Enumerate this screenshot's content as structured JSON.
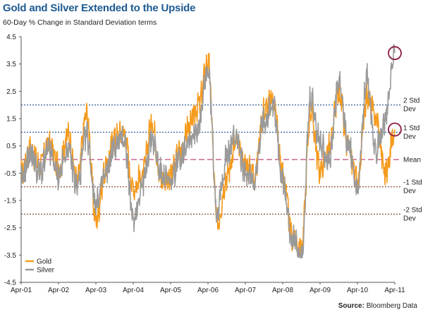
{
  "header": {
    "title": "Gold and Silver Extended to the Upside",
    "subtitle": "60-Day % Change in Standard Deviation terms"
  },
  "footer": {
    "source_label": "Source:",
    "source_value": "Bloomberg Data"
  },
  "colors": {
    "gold": "#f59a1d",
    "silver": "#9a9a9a",
    "std_line": "#1f4f8f",
    "neg_std_line": "#7a3d22",
    "mean_line": "#c0487a",
    "circle": "#8b1a3a"
  },
  "chart_data": {
    "type": "line",
    "title": "Gold and Silver Extended to the Upside",
    "subtitle": "60-Day % Change in Standard Deviation terms",
    "ylim": [
      -4.5,
      4.5
    ],
    "yticks": [
      "4.5",
      "3.5",
      "2.5",
      "1.5",
      "0.5",
      "-0.5",
      "-1.5",
      "-2.5",
      "-3.5",
      "-4.5"
    ],
    "xticks": [
      "Apr-01",
      "Apr-02",
      "Apr-03",
      "Apr-04",
      "Apr-05",
      "Apr-06",
      "Apr-07",
      "Apr-08",
      "Apr-09",
      "Apr-10",
      "Apr-11"
    ],
    "reference_lines": [
      {
        "value": 2,
        "label_line1": "2 Std",
        "label_line2": "Dev",
        "style": "pos"
      },
      {
        "value": 1,
        "label_line1": "1 Std",
        "label_line2": "Dev",
        "style": "pos"
      },
      {
        "value": 0,
        "label_line1": "Mean",
        "label_line2": "",
        "style": "mean"
      },
      {
        "value": -1,
        "label_line1": "-1 Std",
        "label_line2": "Dev",
        "style": "neg"
      },
      {
        "value": -2,
        "label_line1": "-2 Std",
        "label_line2": "Dev",
        "style": "neg"
      }
    ],
    "legend": {
      "position": "bottom-left"
    },
    "series": [
      {
        "name": "Gold",
        "color": "#f59a1d",
        "x": [
          2001.25,
          2001.5,
          2001.75,
          2002.0,
          2002.25,
          2002.5,
          2002.75,
          2003.0,
          2003.25,
          2003.5,
          2003.75,
          2004.0,
          2004.25,
          2004.5,
          2004.75,
          2005.0,
          2005.25,
          2005.5,
          2005.75,
          2006.0,
          2006.25,
          2006.5,
          2006.75,
          2007.0,
          2007.25,
          2007.5,
          2007.75,
          2008.0,
          2008.25,
          2008.5,
          2008.75,
          2009.0,
          2009.25,
          2009.5,
          2009.75,
          2010.0,
          2010.25,
          2010.5,
          2010.75,
          2011.0,
          2011.25
        ],
        "values": [
          -0.5,
          0.4,
          -0.2,
          0.6,
          -0.3,
          0.9,
          -0.8,
          1.7,
          -2.2,
          -0.4,
          0.8,
          1.0,
          -1.0,
          -0.6,
          1.4,
          -0.8,
          -0.6,
          0.3,
          1.2,
          2.0,
          3.6,
          -2.3,
          -0.6,
          0.6,
          -0.2,
          -0.5,
          1.8,
          2.2,
          -0.5,
          -2.8,
          -3.3,
          1.8,
          -0.4,
          0.4,
          2.5,
          0.4,
          -0.8,
          2.3,
          1.5,
          -0.5,
          1.1
        ]
      },
      {
        "name": "Silver",
        "color": "#9a9a9a",
        "x": [
          2001.25,
          2001.5,
          2001.75,
          2002.0,
          2002.25,
          2002.5,
          2002.75,
          2003.0,
          2003.25,
          2003.5,
          2003.75,
          2004.0,
          2004.25,
          2004.5,
          2004.75,
          2005.0,
          2005.25,
          2005.5,
          2005.75,
          2006.0,
          2006.25,
          2006.5,
          2006.75,
          2007.0,
          2007.25,
          2007.5,
          2007.75,
          2008.0,
          2008.25,
          2008.5,
          2008.75,
          2009.0,
          2009.25,
          2009.5,
          2009.75,
          2010.0,
          2010.25,
          2010.5,
          2010.75,
          2011.0,
          2011.25
        ],
        "values": [
          -0.8,
          0.2,
          -0.5,
          0.3,
          -0.6,
          0.4,
          -1.0,
          0.9,
          -1.6,
          -0.6,
          0.5,
          0.8,
          -2.2,
          -0.9,
          0.8,
          -0.5,
          -0.9,
          0.1,
          0.8,
          1.2,
          3.3,
          -1.9,
          0.1,
          0.9,
          -0.6,
          -0.7,
          1.5,
          2.0,
          -0.8,
          -2.9,
          -3.5,
          2.2,
          0.6,
          0.0,
          2.8,
          0.6,
          -1.1,
          3.0,
          0.4,
          1.5,
          3.9
        ]
      }
    ]
  },
  "legend_items": [
    {
      "name": "Gold"
    },
    {
      "name": "Silver"
    }
  ]
}
